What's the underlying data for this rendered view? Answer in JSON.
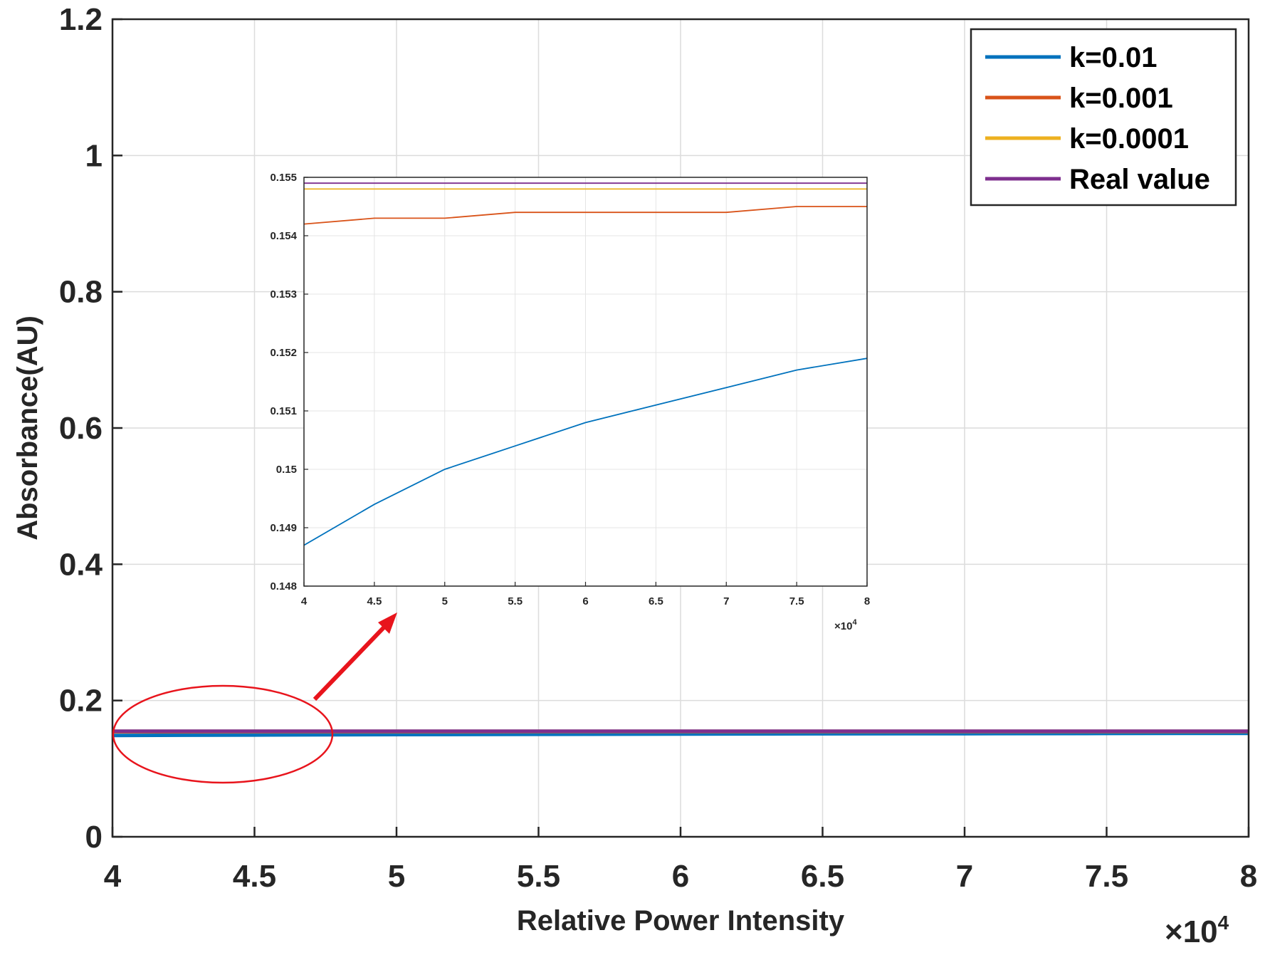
{
  "colors": {
    "k_0_01": "#0072BD",
    "k_0_001": "#D95319",
    "k_0_0001": "#EDB120",
    "real_value": "#7E2F8E",
    "annotation": "#e8141c",
    "axes": "#262626",
    "grid": "#dcdcdc"
  },
  "chart_data": [
    {
      "type": "line",
      "xlabel": "Relative Power Intensity",
      "ylabel": "Absorbance(AU)",
      "x_multiplier": "×10",
      "x_multiplier_exp": "4",
      "xlim": [
        4,
        8
      ],
      "ylim": [
        0,
        1.2
      ],
      "xticks": [
        4,
        4.5,
        5,
        5.5,
        6,
        6.5,
        7,
        7.5,
        8
      ],
      "xtick_labels": [
        "4",
        "4.5",
        "5",
        "5.5",
        "6",
        "6.5",
        "7",
        "7.5",
        "8"
      ],
      "yticks": [
        0,
        0.2,
        0.4,
        0.6,
        0.8,
        1,
        1.2
      ],
      "ytick_labels": [
        "0",
        "0.2",
        "0.4",
        "0.6",
        "0.8",
        "1",
        "1.2"
      ],
      "grid": true,
      "legend_position": "top-right",
      "x": [
        4,
        4.5,
        5,
        5.5,
        6,
        6.5,
        7,
        7.5,
        8
      ],
      "series": [
        {
          "name": "k=0.01",
          "values": [
            0.1487,
            0.1494,
            0.15,
            0.1504,
            0.1508,
            0.1511,
            0.1514,
            0.1517,
            0.1519
          ]
        },
        {
          "name": "k=0.001",
          "values": [
            0.1542,
            0.1543,
            0.1543,
            0.1544,
            0.1544,
            0.1544,
            0.1544,
            0.1545,
            0.1545
          ]
        },
        {
          "name": "k=0.0001",
          "values": [
            0.1548,
            0.1548,
            0.1548,
            0.1548,
            0.1548,
            0.1548,
            0.1548,
            0.1548,
            0.1548
          ]
        },
        {
          "name": "Real value",
          "values": [
            0.1549,
            0.1549,
            0.1549,
            0.1549,
            0.1549,
            0.1549,
            0.1549,
            0.1549,
            0.1549
          ]
        }
      ]
    },
    {
      "type": "line",
      "xlim": [
        4,
        8
      ],
      "ylim": [
        0.148,
        0.155
      ],
      "xticks": [
        4,
        4.5,
        5,
        5.5,
        6,
        6.5,
        7,
        7.5,
        8
      ],
      "xtick_labels": [
        "4",
        "4.5",
        "5",
        "5.5",
        "6",
        "6.5",
        "7",
        "7.5",
        "8"
      ],
      "yticks": [
        0.148,
        0.149,
        0.15,
        0.151,
        0.152,
        0.153,
        0.154,
        0.155
      ],
      "ytick_labels": [
        "0.148",
        "0.149",
        "0.15",
        "0.151",
        "0.152",
        "0.153",
        "0.154",
        "0.155"
      ],
      "x_multiplier": "×10",
      "x_multiplier_exp": "4",
      "grid": true,
      "x": [
        4,
        4.5,
        5,
        5.5,
        6,
        6.5,
        7,
        7.5,
        8
      ],
      "series": [
        {
          "name": "k=0.01",
          "values": [
            0.1487,
            0.1494,
            0.15,
            0.1504,
            0.1508,
            0.1511,
            0.1514,
            0.1517,
            0.1519
          ]
        },
        {
          "name": "k=0.001",
          "values": [
            0.1542,
            0.1543,
            0.1543,
            0.1544,
            0.1544,
            0.1544,
            0.1544,
            0.1545,
            0.1545
          ]
        },
        {
          "name": "k=0.0001",
          "values": [
            0.1548,
            0.1548,
            0.1548,
            0.1548,
            0.1548,
            0.1548,
            0.1548,
            0.1548,
            0.1548
          ]
        },
        {
          "name": "Real value",
          "values": [
            0.1549,
            0.1549,
            0.1549,
            0.1549,
            0.1549,
            0.1549,
            0.1549,
            0.1549,
            0.1549
          ]
        }
      ]
    }
  ]
}
